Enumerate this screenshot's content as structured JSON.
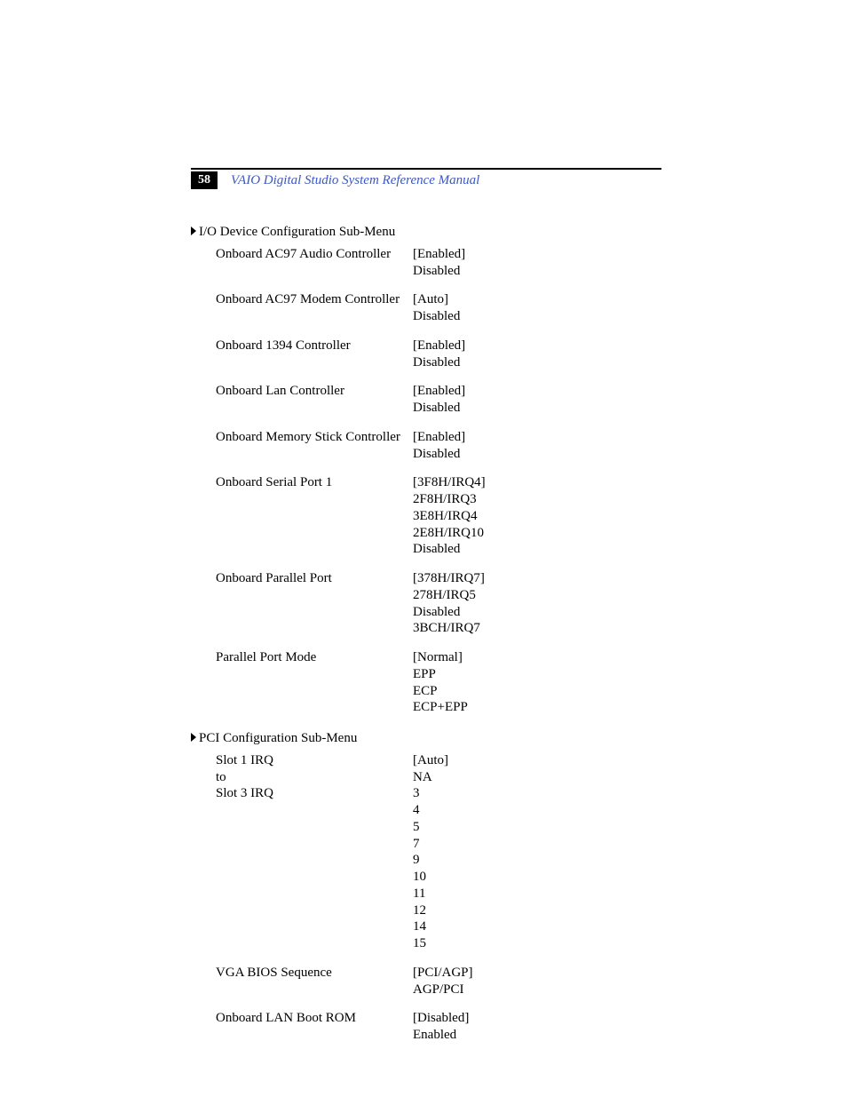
{
  "page_number": "58",
  "header_title": "VAIO Digital Studio System Reference Manual",
  "colors": {
    "header_rule": "#000000",
    "page_num_bg": "#000000",
    "page_num_fg": "#ffffff",
    "header_title_color": "#3b57c4",
    "text": "#000000",
    "background": "#ffffff"
  },
  "typography": {
    "body_font": "Palatino",
    "body_size_pt": 11,
    "header_italic": true
  },
  "sections": [
    {
      "title": "I/O Device Configuration Sub-Menu",
      "rows": [
        {
          "label": "Onboard AC97 Audio Controller",
          "values": [
            "[Enabled]",
            "Disabled"
          ]
        },
        {
          "label": "Onboard AC97 Modem Controller",
          "values": [
            "[Auto]",
            "Disabled"
          ]
        },
        {
          "label": "Onboard 1394 Controller",
          "values": [
            "[Enabled]",
            "Disabled"
          ]
        },
        {
          "label": "Onboard Lan Controller",
          "values": [
            "[Enabled]",
            "Disabled"
          ]
        },
        {
          "label": "Onboard Memory Stick Controller",
          "values": [
            "[Enabled]",
            "Disabled"
          ]
        },
        {
          "label": "Onboard Serial Port 1",
          "values": [
            "[3F8H/IRQ4]",
            "2F8H/IRQ3",
            "3E8H/IRQ4",
            "2E8H/IRQ10",
            "Disabled"
          ]
        },
        {
          "label": "Onboard Parallel Port",
          "values": [
            "[378H/IRQ7]",
            "278H/IRQ5",
            "Disabled",
            "3BCH/IRQ7"
          ]
        },
        {
          "label": "Parallel Port Mode",
          "values": [
            "[Normal]",
            "EPP",
            "ECP",
            "ECP+EPP"
          ]
        }
      ]
    },
    {
      "title": "PCI Configuration Sub-Menu",
      "rows": [
        {
          "label": "Slot 1 IRQ\nto\nSlot 3 IRQ",
          "values": [
            "[Auto]",
            "NA",
            "3",
            "4",
            "5",
            "7",
            "9",
            "10",
            "11",
            "12",
            "14",
            "15"
          ]
        },
        {
          "label": "VGA BIOS Sequence",
          "values": [
            "[PCI/AGP]",
            "AGP/PCI"
          ]
        },
        {
          "label": "Onboard LAN Boot ROM",
          "values": [
            "[Disabled]",
            "Enabled"
          ]
        }
      ]
    }
  ]
}
